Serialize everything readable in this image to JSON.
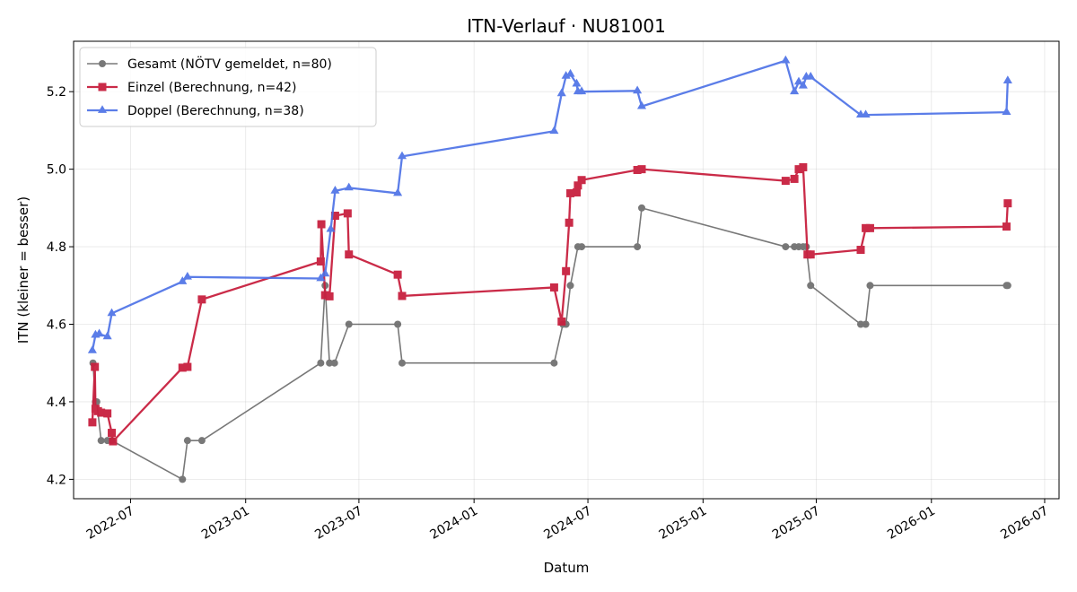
{
  "chart_data": {
    "type": "line",
    "title": "ITN-Verlauf · NU81001",
    "xlabel": "Datum",
    "ylabel": "ITN  (kleiner = besser)",
    "x_axis_type": "date",
    "xlim": [
      "2022-04-01",
      "2026-07-24"
    ],
    "ylim": [
      4.15,
      5.33
    ],
    "x_ticks": [
      "2022-07-01",
      "2023-01-01",
      "2023-07-01",
      "2024-01-01",
      "2024-07-01",
      "2025-01-01",
      "2025-07-01",
      "2026-01-01",
      "2026-07-01"
    ],
    "x_tick_labels": [
      "2022-07",
      "2023-01",
      "2023-07",
      "2024-01",
      "2024-07",
      "2025-01",
      "2025-07",
      "2026-01",
      "2026-07"
    ],
    "y_ticks": [
      4.2,
      4.4,
      4.6,
      4.8,
      5.0,
      5.2
    ],
    "y_tick_labels": [
      "4.2",
      "4.4",
      "4.6",
      "4.8",
      "5.0",
      "5.2"
    ],
    "grid": true,
    "legend_position": "top-left",
    "series": [
      {
        "name": "Gesamt (NÖTV gemeldet, n=80)",
        "color": "#404040",
        "marker": "circle",
        "points": [
          [
            "2022-05-02",
            4.5
          ],
          [
            "2022-05-06",
            4.4
          ],
          [
            "2022-05-08",
            4.4
          ],
          [
            "2022-05-15",
            4.3
          ],
          [
            "2022-05-25",
            4.3
          ],
          [
            "2022-06-01",
            4.3
          ],
          [
            "2022-09-22",
            4.2
          ],
          [
            "2022-09-30",
            4.3
          ],
          [
            "2022-10-23",
            4.3
          ],
          [
            "2023-05-01",
            4.5
          ],
          [
            "2023-05-08",
            4.7
          ],
          [
            "2023-05-15",
            4.5
          ],
          [
            "2023-05-23",
            4.5
          ],
          [
            "2023-06-15",
            4.6
          ],
          [
            "2023-09-01",
            4.6
          ],
          [
            "2023-09-08",
            4.5
          ],
          [
            "2024-05-08",
            4.5
          ],
          [
            "2024-05-22",
            4.6
          ],
          [
            "2024-05-27",
            4.6
          ],
          [
            "2024-06-03",
            4.7
          ],
          [
            "2024-06-15",
            4.8
          ],
          [
            "2024-06-21",
            4.8
          ],
          [
            "2024-09-18",
            4.8
          ],
          [
            "2024-09-25",
            4.9
          ],
          [
            "2025-05-13",
            4.8
          ],
          [
            "2025-05-27",
            4.8
          ],
          [
            "2025-06-03",
            4.8
          ],
          [
            "2025-06-10",
            4.8
          ],
          [
            "2025-06-15",
            4.8
          ],
          [
            "2025-06-22",
            4.7
          ],
          [
            "2025-09-10",
            4.6
          ],
          [
            "2025-09-18",
            4.6
          ],
          [
            "2025-09-25",
            4.7
          ],
          [
            "2026-05-01",
            4.7
          ],
          [
            "2026-05-03",
            4.7
          ]
        ]
      },
      {
        "name": "Einzel (Berechnung, n=42)",
        "color": "#c8203f",
        "marker": "square",
        "points": [
          [
            "2022-05-01",
            4.347
          ],
          [
            "2022-05-05",
            4.49
          ],
          [
            "2022-05-06",
            4.382
          ],
          [
            "2022-05-10",
            4.376
          ],
          [
            "2022-05-15",
            4.372
          ],
          [
            "2022-05-25",
            4.37
          ],
          [
            "2022-06-01",
            4.32
          ],
          [
            "2022-06-03",
            4.298
          ],
          [
            "2022-09-22",
            4.488
          ],
          [
            "2022-09-30",
            4.49
          ],
          [
            "2022-10-23",
            4.664
          ],
          [
            "2023-05-01",
            4.762
          ],
          [
            "2023-05-02",
            4.858
          ],
          [
            "2023-05-08",
            4.675
          ],
          [
            "2023-05-15",
            4.672
          ],
          [
            "2023-05-24",
            4.88
          ],
          [
            "2023-06-13",
            4.886
          ],
          [
            "2023-06-15",
            4.78
          ],
          [
            "2023-09-01",
            4.728
          ],
          [
            "2023-09-08",
            4.673
          ],
          [
            "2024-05-08",
            4.695
          ],
          [
            "2024-05-20",
            4.607
          ],
          [
            "2024-05-27",
            4.737
          ],
          [
            "2024-06-01",
            4.862
          ],
          [
            "2024-06-03",
            4.938
          ],
          [
            "2024-06-13",
            4.94
          ],
          [
            "2024-06-15",
            4.958
          ],
          [
            "2024-06-21",
            4.972
          ],
          [
            "2024-09-18",
            4.998
          ],
          [
            "2024-09-25",
            5.0
          ],
          [
            "2025-05-13",
            4.97
          ],
          [
            "2025-05-27",
            4.975
          ],
          [
            "2025-06-03",
            5.0
          ],
          [
            "2025-06-10",
            5.005
          ],
          [
            "2025-06-17",
            4.78
          ],
          [
            "2025-06-22",
            4.78
          ],
          [
            "2025-09-10",
            4.792
          ],
          [
            "2025-09-18",
            4.848
          ],
          [
            "2025-09-25",
            4.848
          ],
          [
            "2026-05-01",
            4.852
          ],
          [
            "2026-05-03",
            4.912
          ]
        ]
      },
      {
        "name": "Doppel (Berechnung, n=38)",
        "color": "#4a6fe6",
        "marker": "triangle",
        "points": [
          [
            "2022-05-01",
            4.532
          ],
          [
            "2022-05-06",
            4.572
          ],
          [
            "2022-05-12",
            4.575
          ],
          [
            "2022-05-25",
            4.568
          ],
          [
            "2022-06-01",
            4.628
          ],
          [
            "2022-09-22",
            4.71
          ],
          [
            "2022-09-30",
            4.722
          ],
          [
            "2023-05-01",
            4.718
          ],
          [
            "2023-05-08",
            4.73
          ],
          [
            "2023-05-17",
            4.845
          ],
          [
            "2023-05-24",
            4.944
          ],
          [
            "2023-06-15",
            4.952
          ],
          [
            "2023-09-01",
            4.938
          ],
          [
            "2023-09-08",
            5.033
          ],
          [
            "2024-05-08",
            5.098
          ],
          [
            "2024-05-20",
            5.195
          ],
          [
            "2024-05-27",
            5.24
          ],
          [
            "2024-06-03",
            5.245
          ],
          [
            "2024-06-13",
            5.22
          ],
          [
            "2024-06-15",
            5.2
          ],
          [
            "2024-06-21",
            5.2
          ],
          [
            "2024-09-18",
            5.202
          ],
          [
            "2024-09-25",
            5.162
          ],
          [
            "2025-05-13",
            5.28
          ],
          [
            "2025-05-27",
            5.2
          ],
          [
            "2025-06-03",
            5.225
          ],
          [
            "2025-06-10",
            5.215
          ],
          [
            "2025-06-15",
            5.238
          ],
          [
            "2025-06-22",
            5.238
          ],
          [
            "2025-09-10",
            5.14
          ],
          [
            "2025-09-18",
            5.14
          ],
          [
            "2026-05-01",
            5.147
          ],
          [
            "2026-05-03",
            5.228
          ]
        ]
      }
    ]
  }
}
